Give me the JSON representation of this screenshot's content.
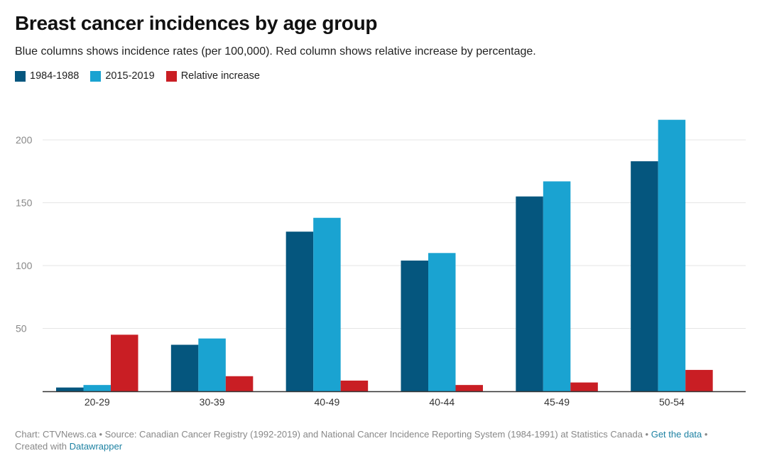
{
  "title": "Breast cancer incidences by age group",
  "subtitle": "Blue columns shows incidence rates (per 100,000). Red column shows relative increase by percentage.",
  "colors": {
    "series_1984": "#05567e",
    "series_2015": "#1aa3d1",
    "relative": "#c91e24",
    "grid": "#e6e6e6",
    "axis": "#333333",
    "tick_text": "#888888",
    "link": "#1d81a2"
  },
  "footer": {
    "chart_prefix": "Chart: CTVNews.ca • Source: Canadian Cancer Registry (1992-2019) and National Cancer Incidence Reporting System (1984-1991) at Statistics Canada • ",
    "get_data": "Get the data",
    "created_prefix": " • Created with ",
    "datawrapper": "Datawrapper"
  },
  "chart_data": {
    "type": "bar",
    "title": "Breast cancer incidences by age group",
    "subtitle": "Blue columns shows incidence rates (per 100,000). Red column shows relative increase by percentage.",
    "categories": [
      "20-29",
      "30-39",
      "40-49",
      "40-44",
      "45-49",
      "50-54"
    ],
    "series": [
      {
        "name": "1984-1988",
        "color": "#05567e",
        "values": [
          3,
          37,
          127,
          104,
          155,
          183
        ]
      },
      {
        "name": "2015-2019",
        "color": "#1aa3d1",
        "values": [
          5,
          42,
          138,
          110,
          167,
          216
        ]
      },
      {
        "name": "Relative increase",
        "color": "#c91e24",
        "values": [
          45,
          12,
          8.5,
          5,
          7,
          17
        ]
      }
    ],
    "yticks": [
      50,
      100,
      150,
      200
    ],
    "ylim": [
      0,
      230
    ],
    "xlabel": "",
    "ylabel": "",
    "grid": true,
    "legend": "top-left"
  }
}
